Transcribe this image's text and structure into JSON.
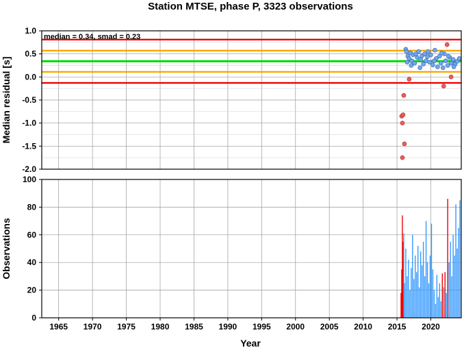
{
  "chart_data": [
    {
      "type": "scatter",
      "title": "Station MTSE, phase P, 3323 observations",
      "ylabel": "Median residual [s]",
      "annotation": "median = 0.34, smad = 0.23",
      "xlim": [
        1962.5,
        2024.5
      ],
      "ylim": [
        -2.0,
        1.0
      ],
      "yticks": [
        "1.0",
        "0.5",
        "0.0",
        "-0.5",
        "-1.0",
        "-1.5",
        "-2.0"
      ],
      "grid": true,
      "reference_lines": [
        {
          "value": 0.81,
          "color": "#ee0000",
          "role": "median + 2 smad"
        },
        {
          "value": 0.57,
          "color": "#ffa500",
          "role": "median + 1 smad"
        },
        {
          "value": 0.34,
          "color": "#00dd00",
          "role": "median"
        },
        {
          "value": 0.11,
          "color": "#ffa500",
          "role": "median - 1 smad"
        },
        {
          "value": -0.13,
          "color": "#ee0000",
          "role": "median - 2 smad"
        }
      ],
      "colors": {
        "inlier": "#6fa8f0",
        "outlier": "#f05a5a"
      },
      "inliers": [
        [
          2016.3,
          0.6
        ],
        [
          2016.4,
          0.55
        ],
        [
          2016.6,
          0.45
        ],
        [
          2016.8,
          0.4
        ],
        [
          2017.0,
          0.52
        ],
        [
          2017.2,
          0.35
        ],
        [
          2017.4,
          0.48
        ],
        [
          2017.6,
          0.3
        ],
        [
          2017.8,
          0.5
        ],
        [
          2018.0,
          0.42
        ],
        [
          2018.2,
          0.55
        ],
        [
          2018.5,
          0.38
        ],
        [
          2018.7,
          0.46
        ],
        [
          2018.9,
          0.28
        ],
        [
          2019.1,
          0.5
        ],
        [
          2019.3,
          0.35
        ],
        [
          2019.5,
          0.44
        ],
        [
          2019.8,
          0.32
        ],
        [
          2020.0,
          0.48
        ],
        [
          2020.3,
          0.26
        ],
        [
          2020.6,
          0.58
        ],
        [
          2020.8,
          0.4
        ],
        [
          2021.0,
          0.22
        ],
        [
          2021.3,
          0.45
        ],
        [
          2021.5,
          0.3
        ],
        [
          2021.8,
          0.2
        ],
        [
          2022.0,
          0.5
        ],
        [
          2022.2,
          0.35
        ],
        [
          2022.5,
          0.25
        ],
        [
          2022.8,
          0.42
        ],
        [
          2023.0,
          0.3
        ],
        [
          2023.3,
          0.38
        ],
        [
          2023.6,
          0.28
        ],
        [
          2023.9,
          0.34
        ],
        [
          2024.2,
          0.4
        ],
        [
          2016.5,
          0.32
        ],
        [
          2017.1,
          0.25
        ],
        [
          2018.4,
          0.2
        ],
        [
          2019.6,
          0.55
        ],
        [
          2020.5,
          0.35
        ],
        [
          2021.6,
          0.52
        ],
        [
          2022.6,
          0.45
        ],
        [
          2023.4,
          0.22
        ]
      ],
      "outliers": [
        [
          2015.7,
          -0.85
        ],
        [
          2015.8,
          -1.0
        ],
        [
          2015.9,
          -0.82
        ],
        [
          2016.0,
          -0.4
        ],
        [
          2016.1,
          -1.45
        ],
        [
          2015.8,
          -1.75
        ],
        [
          2016.8,
          -0.05
        ],
        [
          2021.9,
          -0.2
        ],
        [
          2022.4,
          0.7
        ],
        [
          2023.0,
          0.0
        ]
      ]
    },
    {
      "type": "bar",
      "ylabel": "Observations",
      "xlabel": "Year",
      "xlim": [
        1962.5,
        2024.5
      ],
      "ylim": [
        0,
        100
      ],
      "xticks": [
        "1965",
        "1970",
        "1975",
        "1980",
        "1985",
        "1990",
        "1995",
        "2000",
        "2005",
        "2010",
        "2015",
        "2020"
      ],
      "yticks": [
        "0",
        "20",
        "40",
        "60",
        "80",
        "100"
      ],
      "grid": true,
      "colors": {
        "normal": "#3399ff",
        "flagged": "#ee0000"
      },
      "bars": [
        {
          "x": 2015.6,
          "value": 18,
          "flag": "red"
        },
        {
          "x": 2015.7,
          "value": 35,
          "flag": "red"
        },
        {
          "x": 2015.8,
          "value": 74,
          "flag": "red"
        },
        {
          "x": 2015.9,
          "value": 55,
          "flag": "red"
        },
        {
          "x": 2016.0,
          "value": 61,
          "flag": "blue"
        },
        {
          "x": 2016.1,
          "value": 25,
          "flag": "blue"
        },
        {
          "x": 2016.3,
          "value": 50,
          "flag": "blue"
        },
        {
          "x": 2016.5,
          "value": 30,
          "flag": "blue"
        },
        {
          "x": 2016.7,
          "value": 42,
          "flag": "blue"
        },
        {
          "x": 2016.9,
          "value": 20,
          "flag": "blue"
        },
        {
          "x": 2017.1,
          "value": 36,
          "flag": "blue"
        },
        {
          "x": 2017.3,
          "value": 60,
          "flag": "blue"
        },
        {
          "x": 2017.5,
          "value": 28,
          "flag": "blue"
        },
        {
          "x": 2017.7,
          "value": 45,
          "flag": "blue"
        },
        {
          "x": 2017.9,
          "value": 33,
          "flag": "blue"
        },
        {
          "x": 2018.1,
          "value": 52,
          "flag": "blue"
        },
        {
          "x": 2018.3,
          "value": 22,
          "flag": "blue"
        },
        {
          "x": 2018.5,
          "value": 48,
          "flag": "blue"
        },
        {
          "x": 2018.7,
          "value": 38,
          "flag": "blue"
        },
        {
          "x": 2018.9,
          "value": 55,
          "flag": "blue"
        },
        {
          "x": 2019.1,
          "value": 30,
          "flag": "blue"
        },
        {
          "x": 2019.3,
          "value": 70,
          "flag": "blue"
        },
        {
          "x": 2019.5,
          "value": 40,
          "flag": "blue"
        },
        {
          "x": 2019.7,
          "value": 25,
          "flag": "blue"
        },
        {
          "x": 2019.9,
          "value": 45,
          "flag": "blue"
        },
        {
          "x": 2020.1,
          "value": 68,
          "flag": "blue"
        },
        {
          "x": 2020.3,
          "value": 35,
          "flag": "blue"
        },
        {
          "x": 2020.5,
          "value": 20,
          "flag": "blue"
        },
        {
          "x": 2020.7,
          "value": 10,
          "flag": "blue"
        },
        {
          "x": 2020.9,
          "value": 31,
          "flag": "blue"
        },
        {
          "x": 2021.1,
          "value": 15,
          "flag": "blue"
        },
        {
          "x": 2021.3,
          "value": 25,
          "flag": "blue"
        },
        {
          "x": 2021.5,
          "value": 12,
          "flag": "blue"
        },
        {
          "x": 2021.7,
          "value": 32,
          "flag": "red"
        },
        {
          "x": 2021.9,
          "value": 22,
          "flag": "blue"
        },
        {
          "x": 2022.1,
          "value": 33,
          "flag": "red"
        },
        {
          "x": 2022.3,
          "value": 18,
          "flag": "blue"
        },
        {
          "x": 2022.5,
          "value": 86,
          "flag": "red"
        },
        {
          "x": 2022.7,
          "value": 40,
          "flag": "blue"
        },
        {
          "x": 2022.9,
          "value": 55,
          "flag": "blue"
        },
        {
          "x": 2023.1,
          "value": 30,
          "flag": "blue"
        },
        {
          "x": 2023.3,
          "value": 60,
          "flag": "blue"
        },
        {
          "x": 2023.5,
          "value": 45,
          "flag": "blue"
        },
        {
          "x": 2023.7,
          "value": 82,
          "flag": "blue"
        },
        {
          "x": 2023.9,
          "value": 50,
          "flag": "blue"
        },
        {
          "x": 2024.1,
          "value": 65,
          "flag": "blue"
        },
        {
          "x": 2024.3,
          "value": 85,
          "flag": "blue"
        }
      ]
    }
  ]
}
